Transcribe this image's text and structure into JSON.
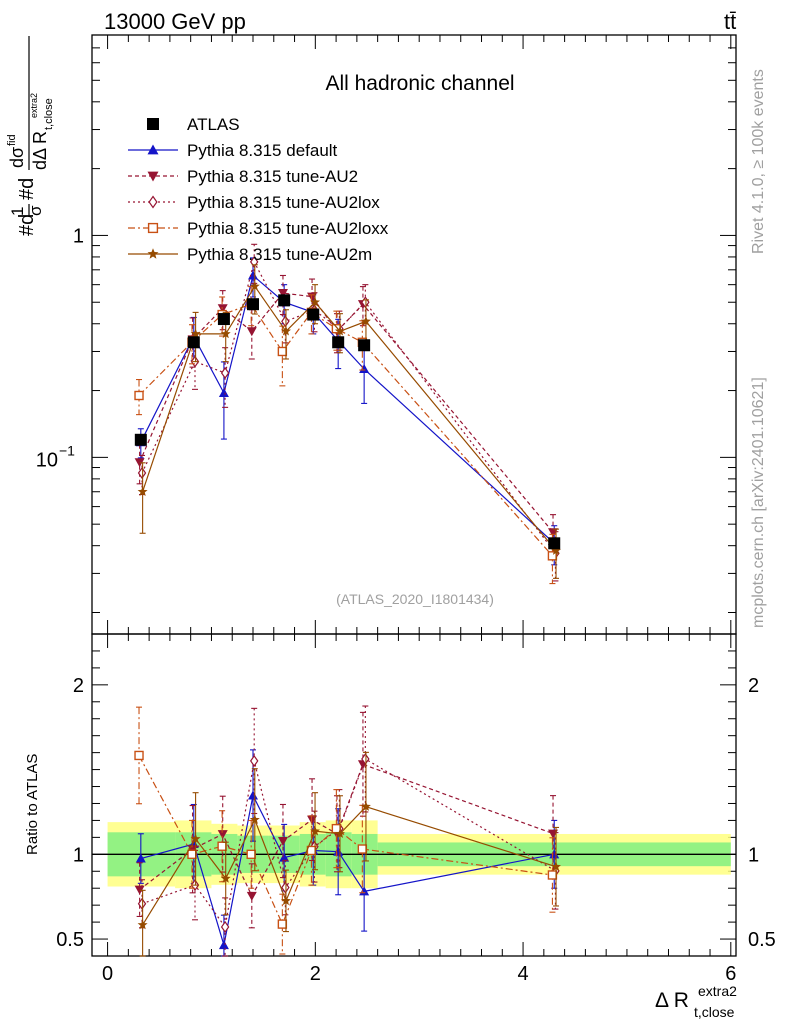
{
  "chart_data": {
    "type": "scatter",
    "header_left": "13000 GeV pp",
    "header_right": "tt̄",
    "title": "All hadronic channel",
    "xlabel": "Δ R_{t,close}^{extra2}",
    "ylabel": "#d1/σ#d dσ^{fid}/dΔ R_{t,close}^{extra2}",
    "ratio_ylabel": "Ratio to ATLAS",
    "side_text_right": "Rivet 4.1.0, ≥ 100k events",
    "side_text_left": "mcplots.cern.ch [arXiv:2401.10621]",
    "analysis_id": "(ATLAS_2020_I1801434)",
    "xlim": [
      -0.15,
      6.05
    ],
    "ylim_main": [
      0.016,
      8.0
    ],
    "ylog": true,
    "ylim_ratio": [
      0.4,
      2.3
    ],
    "x_ticks": [
      "0",
      "2",
      "4",
      "6"
    ],
    "y_ticks_main": [
      "10^-1",
      "1"
    ],
    "y_ticks_ratio": [
      "0.5",
      "1",
      "2"
    ],
    "bin_edges": [
      0.0,
      0.65,
      1.0,
      1.25,
      1.55,
      1.85,
      2.1,
      2.35,
      2.6,
      6.0
    ],
    "x": [
      0.32,
      0.83,
      1.12,
      1.4,
      1.7,
      1.98,
      2.22,
      2.47,
      4.3
    ],
    "data": {
      "name": "ATLAS",
      "values": [
        0.12,
        0.33,
        0.42,
        0.49,
        0.51,
        0.44,
        0.33,
        0.32,
        0.041
      ],
      "band_inner": [
        0.13,
        0.13,
        0.12,
        0.11,
        0.11,
        0.12,
        0.13,
        0.12,
        0.07
      ],
      "band_outer": [
        0.19,
        0.2,
        0.18,
        0.17,
        0.17,
        0.19,
        0.2,
        0.2,
        0.12
      ]
    },
    "series": [
      {
        "name": "Pythia 8.315 default",
        "color": "#1414c8",
        "dash": "",
        "marker": "tri-up",
        "values": [
          0.117,
          0.35,
          0.195,
          0.66,
          0.5,
          0.45,
          0.335,
          0.25,
          0.041
        ],
        "rel_err": [
          0.15,
          0.22,
          0.38,
          0.2,
          0.2,
          0.2,
          0.25,
          0.3,
          0.2
        ]
      },
      {
        "name": "Pythia 8.315 tune-AU2",
        "color": "#961432",
        "dash": "4,3",
        "marker": "tri-down",
        "values": [
          0.095,
          0.34,
          0.47,
          0.37,
          0.55,
          0.53,
          0.37,
          0.49,
          0.046
        ],
        "rel_err": [
          0.2,
          0.25,
          0.2,
          0.25,
          0.2,
          0.2,
          0.2,
          0.2,
          0.2
        ]
      },
      {
        "name": "Pythia 8.315 tune-AU2lox",
        "color": "#961432",
        "dash": "2,3",
        "marker": "diamond",
        "values": [
          0.085,
          0.27,
          0.24,
          0.76,
          0.41,
          0.46,
          0.38,
          0.5,
          0.037
        ],
        "rel_err": [
          0.2,
          0.25,
          0.3,
          0.2,
          0.2,
          0.2,
          0.2,
          0.2,
          0.25
        ]
      },
      {
        "name": "Pythia 8.315 tune-AU2loxx",
        "color": "#c85014",
        "dash": "7,3,2,3",
        "marker": "square",
        "values": [
          0.19,
          0.33,
          0.44,
          0.49,
          0.3,
          0.45,
          0.38,
          0.33,
          0.036
        ],
        "rel_err": [
          0.18,
          0.2,
          0.2,
          0.2,
          0.3,
          0.2,
          0.2,
          0.25,
          0.25
        ]
      },
      {
        "name": "Pythia 8.315 tune-AU2m",
        "color": "#964b00",
        "dash": "",
        "marker": "star",
        "values": [
          0.07,
          0.36,
          0.36,
          0.59,
          0.37,
          0.5,
          0.37,
          0.41,
          0.038
        ],
        "rel_err": [
          0.35,
          0.25,
          0.25,
          0.25,
          0.25,
          0.2,
          0.2,
          0.25,
          0.25
        ]
      }
    ]
  }
}
